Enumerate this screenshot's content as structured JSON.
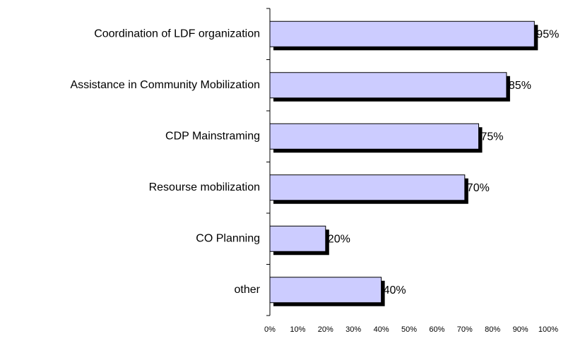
{
  "chart_data": {
    "type": "barh",
    "categories": [
      "Coordination of LDF organization",
      "Assistance in Community Mobilization",
      "CDP Mainstraming",
      "Resourse mobilization",
      "CO Planning",
      "other"
    ],
    "values": [
      95,
      85,
      75,
      70,
      20,
      40
    ],
    "value_labels": [
      "95%",
      "85%",
      "75%",
      "70%",
      "20%",
      "40%"
    ],
    "color": "#ccccff",
    "xlim": [
      0,
      100
    ],
    "xticks": [
      {
        "value": 0,
        "label": "0%"
      },
      {
        "value": 10,
        "label": "10%"
      },
      {
        "value": 20,
        "label": "20%"
      },
      {
        "value": 30,
        "label": "30%"
      },
      {
        "value": 40,
        "label": "40%"
      },
      {
        "value": 50,
        "label": "50%"
      },
      {
        "value": 60,
        "label": "60%"
      },
      {
        "value": 70,
        "label": "70%"
      },
      {
        "value": 80,
        "label": "80%"
      },
      {
        "value": 90,
        "label": "90%"
      },
      {
        "value": 100,
        "label": "100%"
      }
    ],
    "grid": false
  }
}
